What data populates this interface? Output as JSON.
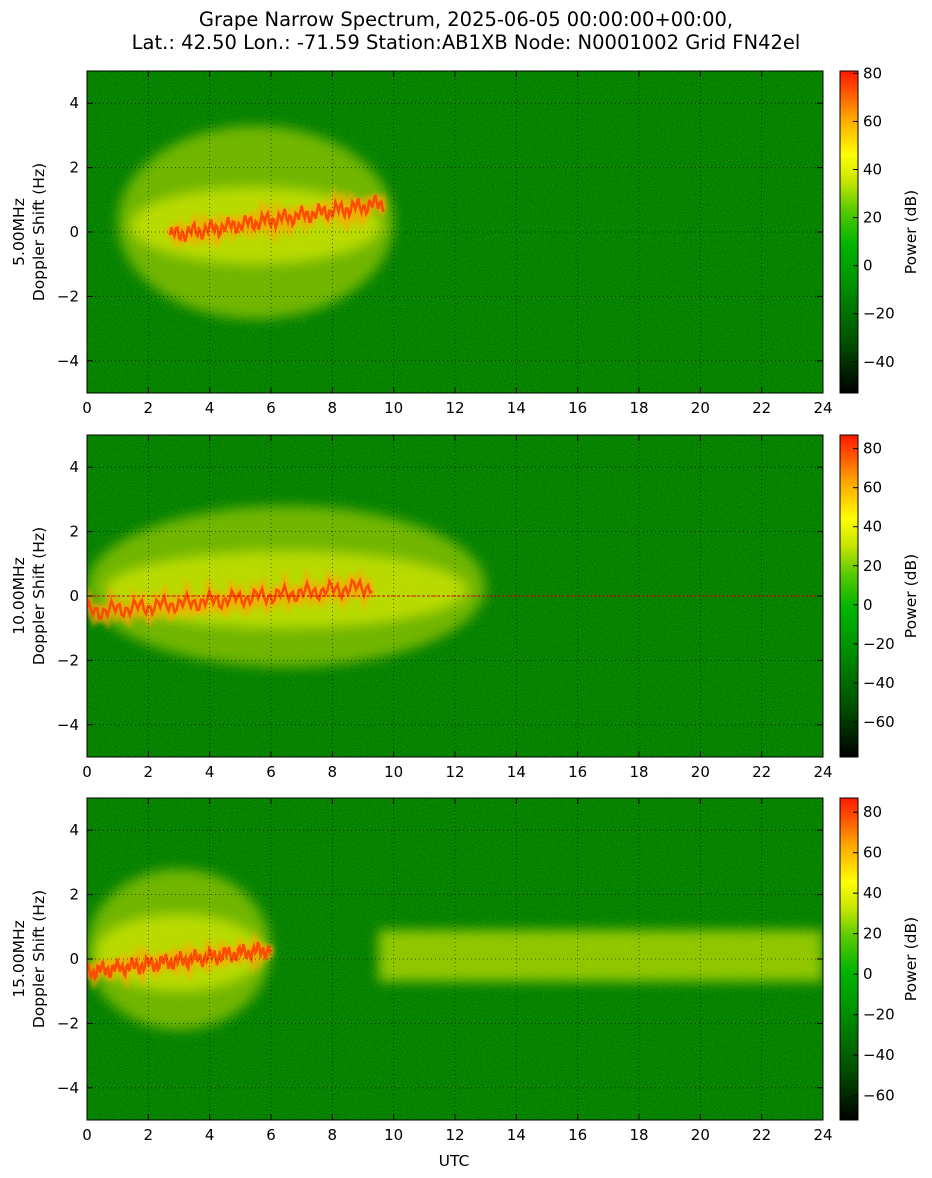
{
  "title": {
    "line1": "Grape Narrow Spectrum, 2025-06-05 00:00:00+00:00,",
    "line2": "Lat.: 42.50 Lon.: -71.59 Station:AB1XB Node: N0001002 Grid FN42el"
  },
  "xlabel": "UTC",
  "colors": {
    "background": "#008000",
    "colormap": [
      "#000000",
      "#006600",
      "#00a000",
      "#50c000",
      "#c8e000",
      "#ffff00",
      "#ffa500",
      "#ff4000",
      "#ff0000"
    ],
    "carrier_line": "#ff0000"
  },
  "chart_data": [
    {
      "type": "heatmap",
      "frequency": "5.00MHz",
      "ylabel_line1": "5.00MHz",
      "ylabel_line2": "Doppler Shift (Hz)",
      "xlabel": "",
      "x_range": [
        0,
        24
      ],
      "y_range": [
        -5,
        5
      ],
      "x_ticks": [
        "0",
        "2",
        "4",
        "6",
        "8",
        "10",
        "12",
        "14",
        "16",
        "18",
        "20",
        "22",
        "24"
      ],
      "y_ticks": [
        "4",
        "2",
        "0",
        "−2",
        "−4"
      ],
      "grid": true,
      "colorbar": {
        "label": "Power (dB)",
        "range": [
          -53,
          81
        ],
        "ticks": [
          "80",
          "60",
          "40",
          "20",
          "0",
          "−20",
          "−40"
        ]
      },
      "features": {
        "strong_signal_hours": [
          1,
          10
        ],
        "trace_hours": [
          2.7,
          9.7
        ],
        "trace_doppler_hz": [
          -0.1,
          0.9
        ],
        "spread_hz": [
          -3,
          3
        ],
        "carrier_line": false
      }
    },
    {
      "type": "heatmap",
      "frequency": "10.00MHz",
      "ylabel_line1": "10.00MHz",
      "ylabel_line2": "Doppler Shift (Hz)",
      "xlabel": "",
      "x_range": [
        0,
        24
      ],
      "y_range": [
        -5,
        5
      ],
      "x_ticks": [
        "0",
        "2",
        "4",
        "6",
        "8",
        "10",
        "12",
        "14",
        "16",
        "18",
        "20",
        "22",
        "24"
      ],
      "y_ticks": [
        "4",
        "2",
        "0",
        "−2",
        "−4"
      ],
      "grid": true,
      "colorbar": {
        "label": "Power (dB)",
        "range": [
          -78,
          87
        ],
        "ticks": [
          "80",
          "60",
          "40",
          "20",
          "0",
          "−20",
          "−40",
          "−60"
        ]
      },
      "features": {
        "strong_signal_hours": [
          0,
          13
        ],
        "trace_hours": [
          0,
          9.3
        ],
        "trace_doppler_hz": [
          -0.5,
          0.3
        ],
        "spread_hz": [
          -2.5,
          2.5
        ],
        "carrier_line": true
      }
    },
    {
      "type": "heatmap",
      "frequency": "15.00MHz",
      "ylabel_line1": "15.00MHz",
      "ylabel_line2": "Doppler Shift (Hz)",
      "xlabel": "UTC",
      "x_range": [
        0,
        24
      ],
      "y_range": [
        -5,
        5
      ],
      "x_ticks": [
        "0",
        "2",
        "4",
        "6",
        "8",
        "10",
        "12",
        "14",
        "16",
        "18",
        "20",
        "22",
        "24"
      ],
      "y_ticks": [
        "4",
        "2",
        "0",
        "−2",
        "−4"
      ],
      "grid": true,
      "colorbar": {
        "label": "Power (dB)",
        "range": [
          -72,
          87
        ],
        "ticks": [
          "80",
          "60",
          "40",
          "20",
          "0",
          "−20",
          "−40",
          "−60"
        ]
      },
      "features": {
        "strong_signal_hours": [
          0,
          6
        ],
        "trace_hours": [
          0,
          6
        ],
        "trace_doppler_hz": [
          -0.4,
          0.3
        ],
        "second_band_hours": [
          9.5,
          24
        ],
        "carrier_line": false
      }
    }
  ]
}
